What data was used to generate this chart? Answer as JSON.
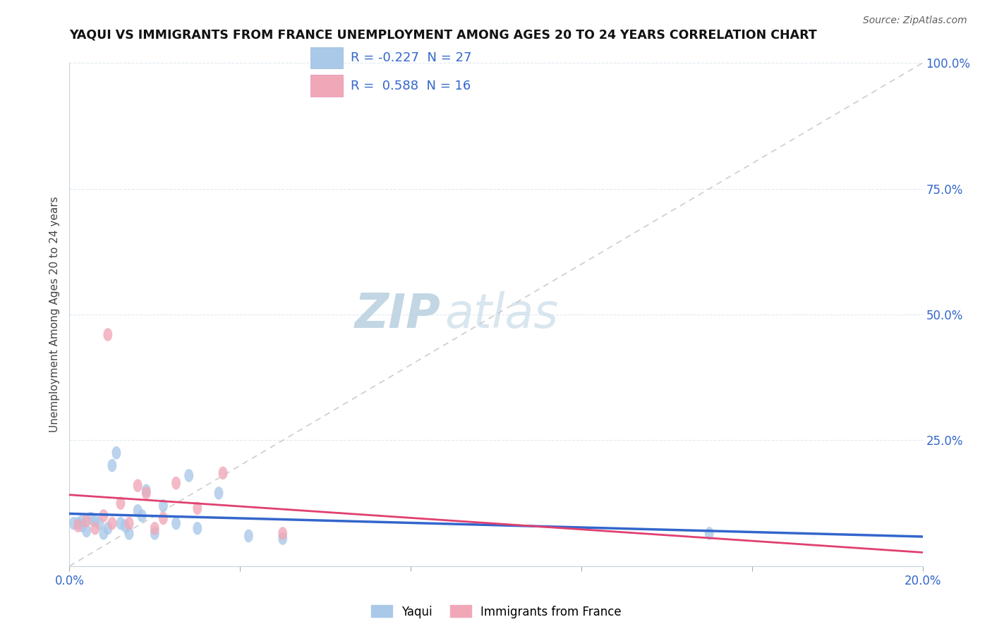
{
  "title": "YAQUI VS IMMIGRANTS FROM FRANCE UNEMPLOYMENT AMONG AGES 20 TO 24 YEARS CORRELATION CHART",
  "source_text": "Source: ZipAtlas.com",
  "ylabel": "Unemployment Among Ages 20 to 24 years",
  "xlim": [
    0.0,
    0.2
  ],
  "ylim": [
    0.0,
    1.0
  ],
  "yticks": [
    0.0,
    0.25,
    0.5,
    0.75,
    1.0
  ],
  "ytick_labels": [
    "",
    "25.0%",
    "50.0%",
    "75.0%",
    "100.0%"
  ],
  "xticks": [
    0.0,
    0.04,
    0.08,
    0.12,
    0.16,
    0.2
  ],
  "xtick_labels": [
    "0.0%",
    "",
    "",
    "",
    "",
    "20.0%"
  ],
  "legend_R1": "R = -0.227",
  "legend_N1": "N = 27",
  "legend_R2": "R =  0.588",
  "legend_N2": "N = 16",
  "series1_name": "Yaqui",
  "series2_name": "Immigrants from France",
  "series1_color": "#aac8e8",
  "series2_color": "#f0a8b8",
  "series1_line_color": "#3366cc",
  "series2_line_color": "#e04070",
  "reference_line_color": "#c8c8c8",
  "grid_color": "#dde8f0",
  "watermark_color": "#ccdded",
  "yaqui_x": [
    0.001,
    0.002,
    0.003,
    0.004,
    0.005,
    0.006,
    0.007,
    0.008,
    0.009,
    0.01,
    0.011,
    0.012,
    0.013,
    0.014,
    0.016,
    0.017,
    0.018,
    0.02,
    0.022,
    0.025,
    0.028,
    0.03,
    0.035,
    0.042,
    0.05,
    0.15,
    0.003
  ],
  "yaqui_y": [
    0.085,
    0.085,
    0.09,
    0.07,
    0.095,
    0.09,
    0.085,
    0.065,
    0.075,
    0.2,
    0.225,
    0.085,
    0.08,
    0.065,
    0.11,
    0.1,
    0.15,
    0.065,
    0.12,
    0.085,
    0.18,
    0.075,
    0.145,
    0.06,
    0.055,
    0.065,
    0.08
  ],
  "france_x": [
    0.002,
    0.004,
    0.006,
    0.008,
    0.01,
    0.012,
    0.014,
    0.016,
    0.018,
    0.02,
    0.022,
    0.025,
    0.03,
    0.036,
    0.05,
    0.009
  ],
  "france_y": [
    0.08,
    0.09,
    0.075,
    0.1,
    0.085,
    0.125,
    0.085,
    0.16,
    0.145,
    0.075,
    0.095,
    0.165,
    0.115,
    0.185,
    0.065,
    0.46
  ],
  "background_color": "#ffffff"
}
